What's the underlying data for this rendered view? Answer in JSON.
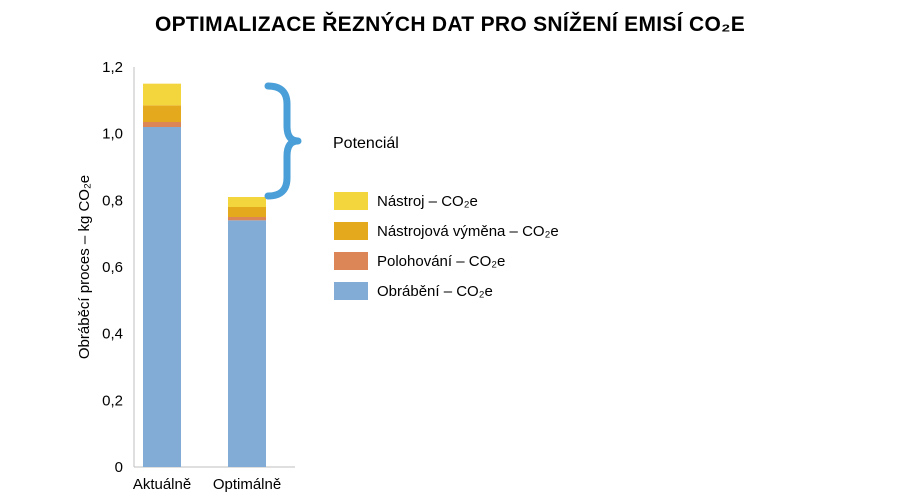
{
  "chart_data": {
    "type": "bar",
    "stacked": true,
    "title": "OPTIMALIZACE ŘEZNÝCH DAT PRO SNÍŽENÍ EMISÍ CO₂E",
    "xlabel": "",
    "ylabel": "Obráběcí proces – kg CO₂e",
    "categories": [
      "Aktuálně",
      "Optimálně"
    ],
    "ylim": [
      0,
      1.2
    ],
    "yticks": [
      "0",
      "0,2",
      "0,4",
      "0,6",
      "0,8",
      "1,0",
      "1,2"
    ],
    "ytick_values": [
      0,
      0.2,
      0.4,
      0.6,
      0.8,
      1.0,
      1.2
    ],
    "grid": false,
    "legend_position": "right",
    "series": [
      {
        "name": "Obrábění – CO₂e",
        "color": "#82acd6",
        "values": [
          1.02,
          0.74
        ]
      },
      {
        "name": "Polohování – CO₂e",
        "color": "#dc8556",
        "values": [
          0.015,
          0.01
        ]
      },
      {
        "name": "Nástrojová výměna – CO₂e",
        "color": "#e4a91c",
        "values": [
          0.05,
          0.03
        ]
      },
      {
        "name": "Nástroj – CO₂e",
        "color": "#f3d63d",
        "values": [
          0.065,
          0.03
        ]
      }
    ],
    "annotations": [
      {
        "text": "Potenciál",
        "type": "bracket",
        "color": "#4a9fd8"
      }
    ]
  }
}
